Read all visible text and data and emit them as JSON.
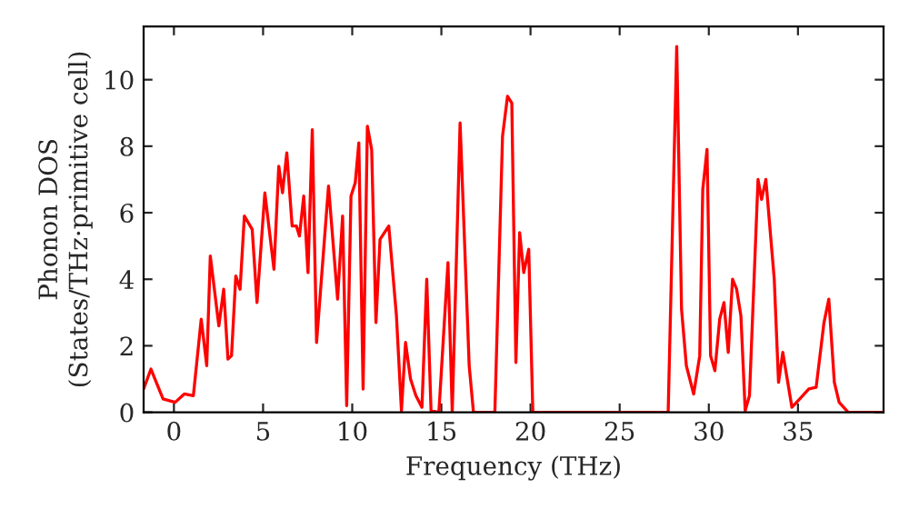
{
  "chart_data": {
    "type": "line",
    "xlabel": "Frequency (THz)",
    "ylabel": "Phonon DOS\n(States/THz·primitive cell)",
    "xlim": [
      -1.7,
      39.8
    ],
    "ylim": [
      0,
      11.6
    ],
    "xticks": [
      0,
      5,
      10,
      15,
      20,
      25,
      30,
      35
    ],
    "yticks": [
      0,
      2,
      4,
      6,
      8,
      10
    ],
    "grid": false,
    "marker": "none",
    "line_style": "solid",
    "series": [
      {
        "color": "#ff0000",
        "x": [
          -1.7,
          -1.29,
          -0.61,
          0.07,
          0.58,
          1.09,
          1.53,
          1.84,
          2.04,
          2.52,
          2.79,
          3.03,
          3.23,
          3.47,
          3.71,
          3.95,
          4.39,
          4.66,
          5.1,
          5.61,
          5.88,
          6.09,
          6.33,
          6.63,
          6.87,
          7.04,
          7.28,
          7.52,
          7.76,
          8.0,
          8.67,
          9.18,
          9.46,
          9.69,
          9.93,
          10.17,
          10.37,
          10.61,
          10.85,
          11.09,
          11.33,
          11.56,
          12.05,
          12.48,
          12.76,
          12.99,
          13.27,
          13.57,
          13.91,
          14.18,
          14.42,
          14.86,
          15.37,
          15.61,
          16.05,
          16.56,
          16.8,
          18.0,
          18.43,
          18.71,
          18.95,
          19.18,
          19.39,
          19.62,
          19.9,
          20.13,
          27.72,
          28.2,
          28.47,
          28.74,
          29.15,
          29.49,
          29.66,
          29.9,
          30.1,
          30.34,
          30.61,
          30.85,
          31.09,
          31.33,
          31.56,
          31.8,
          32.04,
          32.28,
          32.76,
          32.96,
          33.2,
          33.67,
          33.91,
          34.15,
          34.66,
          35.1,
          35.61,
          36.02,
          36.46,
          36.73,
          37.04,
          37.31,
          37.82,
          39.8
        ],
        "values": [
          0.7,
          1.3,
          0.4,
          0.3,
          0.55,
          0.5,
          2.8,
          1.4,
          4.7,
          2.6,
          3.7,
          1.6,
          1.7,
          4.1,
          3.7,
          5.9,
          5.5,
          3.3,
          6.6,
          4.3,
          7.4,
          6.6,
          7.8,
          5.6,
          5.6,
          5.3,
          6.5,
          4.2,
          8.5,
          2.1,
          6.8,
          3.4,
          5.9,
          0.2,
          6.5,
          6.9,
          8.1,
          0.7,
          8.6,
          7.9,
          2.7,
          5.2,
          5.6,
          2.9,
          0.05,
          2.1,
          1.0,
          0.5,
          0.15,
          4.0,
          0.05,
          0,
          4.5,
          0,
          8.7,
          1.4,
          0,
          0,
          8.3,
          9.5,
          9.3,
          1.5,
          5.4,
          4.2,
          4.9,
          0,
          0,
          11.0,
          3.1,
          1.4,
          0.55,
          1.7,
          6.7,
          7.9,
          1.7,
          1.25,
          2.8,
          3.3,
          1.8,
          4.0,
          3.7,
          2.9,
          0.05,
          0.5,
          7.0,
          6.4,
          7.0,
          4.0,
          0.9,
          1.8,
          0.15,
          0.4,
          0.7,
          0.75,
          2.7,
          3.4,
          0.9,
          0.3,
          0,
          0
        ]
      }
    ]
  }
}
